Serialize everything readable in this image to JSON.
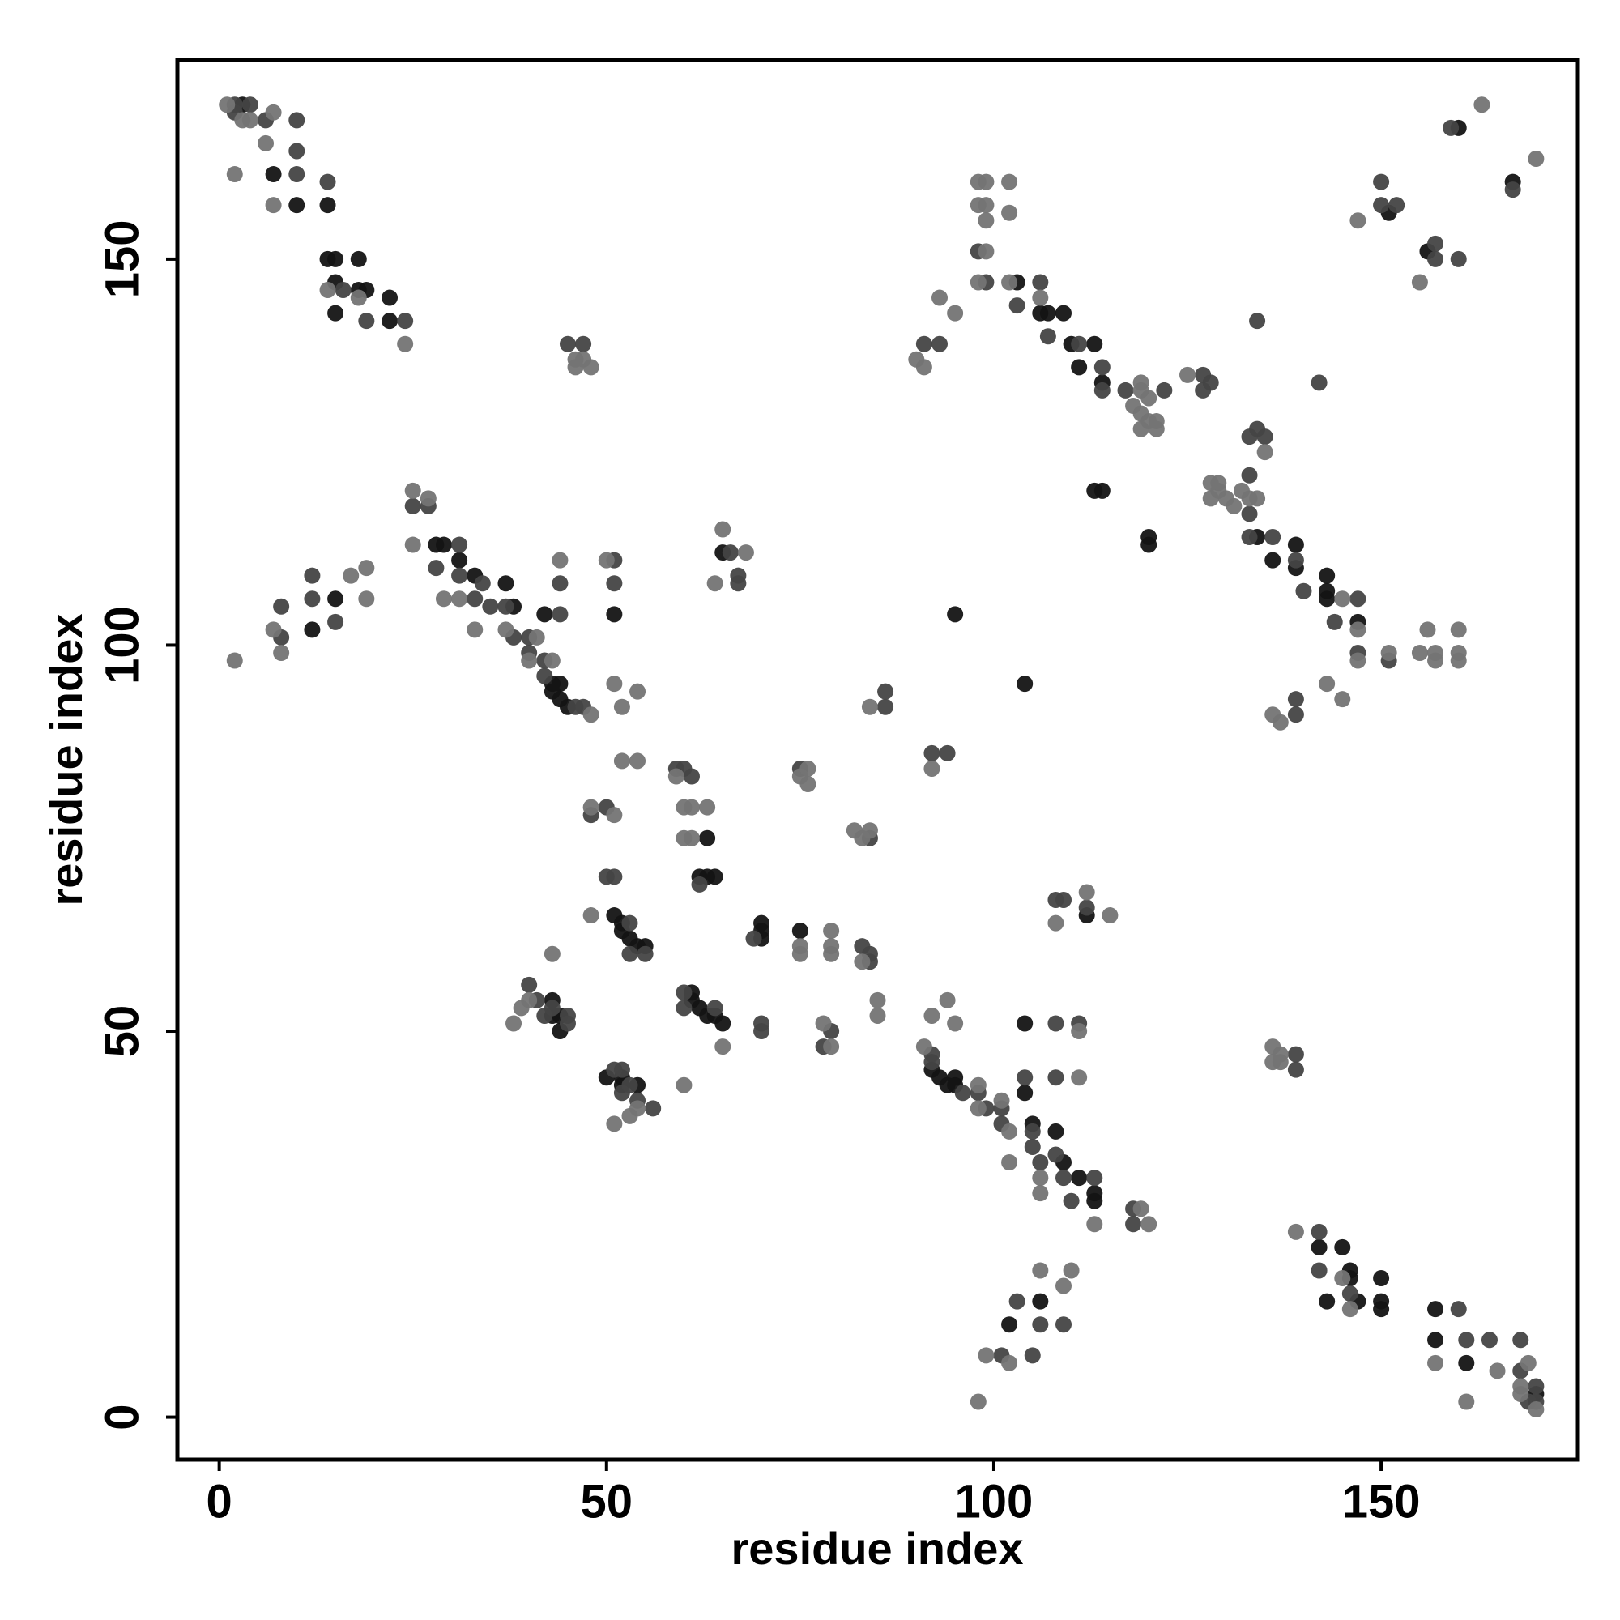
{
  "chart_data": {
    "type": "scatter",
    "xlabel": "residue index",
    "ylabel": "residue index",
    "xlim": [
      -5.4,
      175.4
    ],
    "ylim": [
      -5.5,
      175.8
    ],
    "xticks": [
      0,
      50,
      100,
      150
    ],
    "yticks": [
      0,
      50,
      100,
      150
    ],
    "series": [
      {
        "color": "#141414",
        "x": [
          14,
          15,
          18,
          18,
          19,
          15,
          22,
          14,
          10,
          7,
          15,
          22,
          28,
          29,
          31,
          33,
          37,
          38,
          42,
          43,
          44,
          44,
          43,
          45,
          12,
          15,
          52,
          53,
          54,
          55,
          52,
          51,
          43,
          43,
          44,
          44,
          51,
          65,
          63,
          62,
          63,
          64,
          103,
          106,
          107,
          109,
          110,
          113,
          111,
          114,
          114,
          113,
          95,
          160,
          151,
          3,
          150,
          150,
          150,
          146,
          146,
          147,
          145,
          157,
          157,
          161,
          143,
          142,
          113,
          113,
          111,
          109,
          108,
          105,
          104,
          95,
          95,
          93,
          94,
          92,
          102,
          106,
          64,
          62,
          61,
          61,
          63,
          65,
          54,
          52,
          52,
          50,
          104,
          112,
          75,
          70,
          70,
          70,
          147,
          143,
          143,
          143,
          139,
          139,
          136,
          134,
          120,
          120,
          104,
          167,
          156,
          170
        ],
        "values": [
          150,
          150,
          150,
          146,
          146,
          147,
          145,
          157,
          157,
          161,
          143,
          142,
          113,
          113,
          111,
          109,
          108,
          105,
          104,
          95,
          95,
          93,
          94,
          92,
          102,
          106,
          64,
          62,
          61,
          61,
          63,
          65,
          54,
          52,
          52,
          50,
          104,
          112,
          75,
          70,
          70,
          70,
          147,
          143,
          143,
          143,
          139,
          139,
          136,
          134,
          120,
          120,
          104,
          167,
          156,
          170,
          14,
          15,
          18,
          18,
          19,
          15,
          22,
          14,
          10,
          7,
          15,
          22,
          28,
          29,
          31,
          33,
          37,
          38,
          42,
          43,
          44,
          44,
          43,
          45,
          12,
          15,
          52,
          53,
          54,
          55,
          52,
          51,
          43,
          43,
          44,
          44,
          51,
          65,
          63,
          62,
          63,
          64,
          103,
          106,
          107,
          109,
          110,
          113,
          111,
          114,
          114,
          113,
          95,
          160,
          151,
          3
        ]
      },
      {
        "color": "#444444",
        "x": [
          2,
          4,
          2,
          6,
          10,
          10,
          10,
          14,
          16,
          19,
          24,
          25,
          27,
          28,
          31,
          31,
          34,
          33,
          35,
          37,
          38,
          40,
          40,
          42,
          42,
          46,
          47,
          8,
          8,
          12,
          12,
          15,
          44,
          44,
          45,
          47,
          51,
          51,
          66,
          67,
          67,
          59,
          60,
          61,
          62,
          50,
          51,
          53,
          53,
          55,
          40,
          41,
          42,
          45,
          45,
          43,
          106,
          103,
          107,
          111,
          114,
          114,
          117,
          122,
          127,
          128,
          127,
          98,
          99,
          93,
          91,
          134,
          150,
          150,
          152,
          159,
          86,
          86,
          75,
          48,
          50,
          170,
          170,
          169,
          168,
          168,
          164,
          161,
          160,
          146,
          142,
          142,
          118,
          118,
          110,
          113,
          109,
          108,
          106,
          105,
          105,
          101,
          101,
          99,
          98,
          96,
          92,
          92,
          105,
          101,
          109,
          106,
          103,
          108,
          104,
          139,
          139,
          111,
          108,
          112,
          109,
          108,
          84,
          84,
          83,
          69,
          70,
          70,
          64,
          60,
          60,
          56,
          54,
          52,
          52,
          51,
          53,
          147,
          144,
          140,
          139,
          136,
          133,
          133,
          133,
          135,
          134,
          133,
          151,
          147,
          139,
          139,
          142,
          157,
          160,
          157,
          167,
          92,
          94,
          84,
          78,
          79
        ],
        "values": [
          170,
          170,
          169,
          168,
          168,
          164,
          161,
          160,
          146,
          142,
          142,
          118,
          118,
          110,
          113,
          109,
          108,
          106,
          105,
          105,
          101,
          101,
          99,
          98,
          96,
          92,
          92,
          105,
          101,
          109,
          106,
          103,
          108,
          104,
          139,
          139,
          111,
          108,
          112,
          109,
          108,
          84,
          84,
          83,
          69,
          70,
          70,
          64,
          60,
          60,
          56,
          54,
          52,
          52,
          51,
          53,
          147,
          144,
          140,
          139,
          136,
          133,
          133,
          133,
          135,
          134,
          133,
          151,
          147,
          139,
          139,
          142,
          157,
          160,
          157,
          167,
          92,
          94,
          84,
          78,
          79,
          2,
          4,
          2,
          6,
          10,
          10,
          10,
          14,
          16,
          19,
          24,
          25,
          27,
          28,
          31,
          31,
          34,
          33,
          35,
          37,
          38,
          40,
          40,
          42,
          42,
          46,
          47,
          8,
          8,
          12,
          12,
          15,
          44,
          44,
          45,
          47,
          51,
          51,
          66,
          67,
          67,
          59,
          60,
          61,
          62,
          50,
          51,
          53,
          53,
          55,
          40,
          41,
          42,
          45,
          45,
          43,
          106,
          103,
          107,
          111,
          114,
          114,
          117,
          122,
          127,
          128,
          127,
          98,
          99,
          93,
          91,
          134,
          150,
          150,
          152,
          159,
          86,
          86,
          75,
          48,
          50
        ]
      },
      {
        "color": "#747474",
        "x": [
          1,
          3,
          4,
          7,
          6,
          2,
          7,
          14,
          18,
          24,
          25,
          27,
          25,
          29,
          31,
          33,
          37,
          41,
          40,
          43,
          48,
          2,
          7,
          8,
          17,
          19,
          19,
          44,
          46,
          47,
          48,
          46,
          50,
          65,
          68,
          64,
          51,
          52,
          54,
          52,
          54,
          48,
          51,
          59,
          60,
          61,
          63,
          60,
          61,
          48,
          43,
          40,
          38,
          39,
          102,
          106,
          118,
          119,
          119,
          120,
          119,
          119,
          120,
          121,
          121,
          125,
          90,
          91,
          95,
          98,
          99,
          98,
          99,
          98,
          99,
          99,
          102,
          102,
          147,
          163,
          84,
          75,
          76,
          76,
          93,
          170,
          168,
          168,
          169,
          165,
          161,
          157,
          146,
          145,
          139,
          120,
          119,
          113,
          106,
          106,
          102,
          102,
          101,
          98,
          98,
          91,
          98,
          102,
          99,
          109,
          110,
          106,
          111,
          137,
          137,
          136,
          136,
          111,
          115,
          112,
          108,
          95,
          92,
          94,
          85,
          85,
          79,
          78,
          83,
          79,
          79,
          79,
          75,
          75,
          65,
          60,
          54,
          51,
          53,
          147,
          145,
          131,
          134,
          133,
          132,
          130,
          128,
          129,
          129,
          128,
          135,
          137,
          136,
          143,
          147,
          151,
          157,
          157,
          160,
          160,
          155,
          160,
          156,
          155,
          170,
          92,
          83,
          82,
          84,
          145
        ],
        "values": [
          170,
          168,
          168,
          169,
          165,
          161,
          157,
          146,
          145,
          139,
          120,
          119,
          113,
          106,
          106,
          102,
          102,
          101,
          98,
          98,
          91,
          98,
          102,
          99,
          109,
          110,
          106,
          111,
          137,
          137,
          136,
          136,
          111,
          115,
          112,
          108,
          95,
          92,
          94,
          85,
          85,
          79,
          78,
          83,
          79,
          79,
          79,
          75,
          75,
          65,
          60,
          54,
          51,
          53,
          147,
          145,
          131,
          134,
          133,
          132,
          130,
          128,
          129,
          129,
          128,
          135,
          137,
          136,
          143,
          147,
          151,
          157,
          157,
          160,
          160,
          155,
          160,
          156,
          155,
          170,
          92,
          83,
          82,
          84,
          145,
          1,
          3,
          4,
          7,
          6,
          2,
          7,
          14,
          18,
          24,
          25,
          27,
          25,
          29,
          31,
          33,
          37,
          41,
          40,
          43,
          48,
          2,
          7,
          8,
          17,
          19,
          19,
          44,
          46,
          47,
          48,
          46,
          50,
          65,
          68,
          64,
          51,
          52,
          54,
          52,
          54,
          48,
          51,
          59,
          60,
          61,
          63,
          60,
          61,
          48,
          43,
          40,
          38,
          39,
          102,
          106,
          118,
          119,
          119,
          120,
          119,
          119,
          120,
          121,
          121,
          125,
          90,
          91,
          95,
          98,
          99,
          98,
          99,
          98,
          99,
          99,
          102,
          102,
          147,
          163,
          84,
          75,
          76,
          76,
          93
        ]
      }
    ]
  }
}
